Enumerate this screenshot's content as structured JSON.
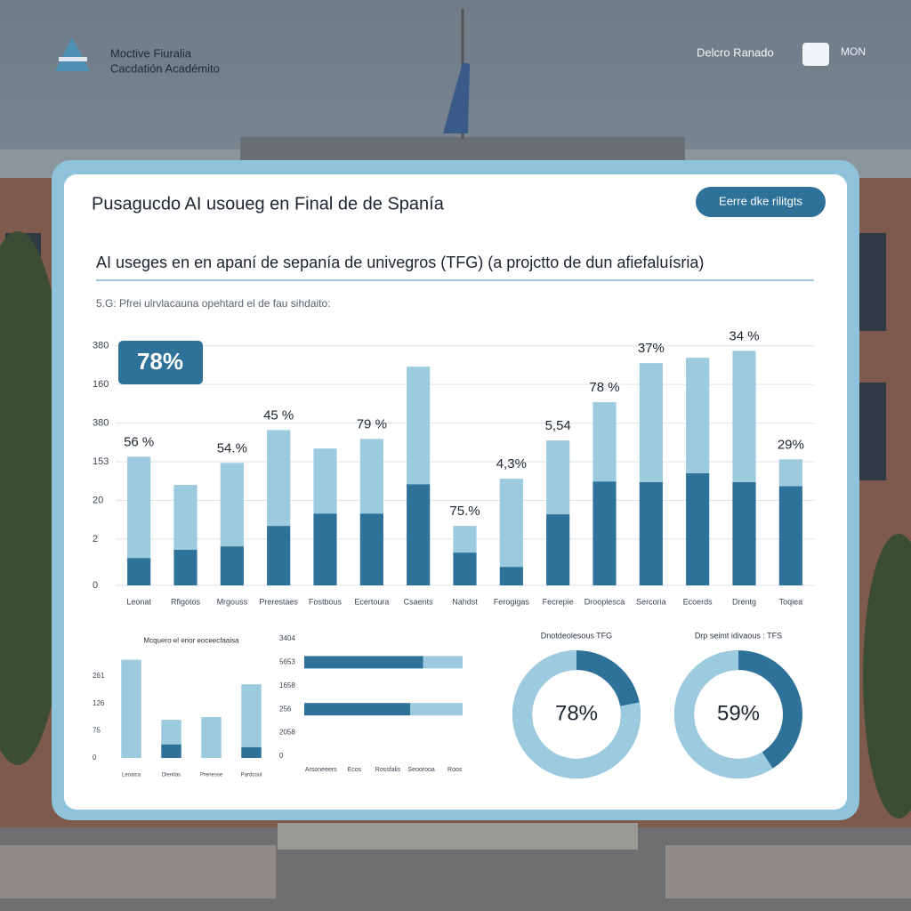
{
  "header": {
    "brand_line1": "Moctive Fiuralia",
    "brand_line2": "Cacdatión Académito",
    "user": "Delcro Ranado",
    "logo_text": "MON"
  },
  "card": {
    "title": "Pusagucdo AI usoueg en Final de de Spanía",
    "button": "Eerre dke rilitgts",
    "subtitle": "AI useges en en apaní de sepanía de univegros (TFG) (a projctto de dun afiefaluísria)",
    "note": "5.G: Pfrei ulrvlacauna opehtard el de fau sihdaito:",
    "badge": "78%"
  },
  "chart_data": [
    {
      "type": "bar",
      "categories": [
        "Leonat",
        "Rfigotos",
        "Mrgouss",
        "Prerestaes",
        "Fostbous",
        "Ecertoura",
        "Csaents",
        "Nahdst",
        "Ferogigas",
        "Fecrepie",
        "Drooplesca",
        "Sercoria",
        "Ecoerds",
        "Drentg",
        "Toqiea"
      ],
      "series": [
        {
          "color": "#2e7199",
          "values": [
            7.1,
            9.2,
            10.1,
            15.4,
            18.6,
            18.6,
            26.2,
            8.5,
            4.8,
            18.4,
            26.9,
            26.7,
            29.0,
            26.7,
            25.7
          ]
        },
        {
          "color": "#9ccbe0",
          "values": [
            26.2,
            16.8,
            21.6,
            24.8,
            16.8,
            19.3,
            30.4,
            6.9,
            22.8,
            19.1,
            20.5,
            30.8,
            29.9,
            34.0,
            6.9
          ]
        }
      ],
      "annotations": [
        "56 %",
        null,
        "54.%",
        "45 %",
        null,
        "79 %",
        null,
        "75.%",
        "4,3%",
        "5,54",
        "78 %",
        "37%",
        null,
        "34 %",
        "29%"
      ],
      "ylim": [
        0,
        64
      ],
      "yticks": [
        0,
        {
          "value": 12,
          "label": "2"
        },
        {
          "value": 22,
          "label": "20"
        },
        {
          "value": 32,
          "label": "153"
        },
        {
          "value": 42,
          "label": "380"
        },
        {
          "value": 52,
          "label": "160"
        },
        {
          "value": 62,
          "label": "380"
        }
      ],
      "grid": true
    },
    {
      "type": "bar",
      "title": "Mcquero el enor eoceecfaaisa",
      "categories": [
        "Leoaica",
        "Dlenilas",
        "Prenesse",
        "Pardcoul"
      ],
      "series": [
        {
          "color": "#2e7199",
          "values": [
            0,
            0.5,
            0,
            0.4
          ]
        },
        {
          "color": "#9ccbe0",
          "values": [
            3.6,
            0.9,
            1.5,
            2.3
          ]
        }
      ],
      "ylim": [
        0,
        3.7
      ],
      "yticks": [
        0,
        {
          "value": 1,
          "label": "75"
        },
        {
          "value": 2,
          "label": "126"
        },
        {
          "value": 3,
          "label": "261"
        }
      ],
      "grid": false
    },
    {
      "type": "hbar",
      "row_labels": [
        "3404",
        "5653",
        "1658",
        "256",
        "2058",
        "0"
      ],
      "x_labels": [
        "Arsoneeers",
        "Ecos",
        "Rossfalis",
        "Seoorooa",
        "Roos"
      ],
      "series": [
        {
          "color": "#2e7199",
          "values": [
            75,
            67
          ]
        },
        {
          "color": "#9ccbe0",
          "values": [
            25,
            33
          ]
        }
      ],
      "xlim": [
        0,
        100
      ]
    },
    {
      "type": "donut",
      "title": "Dnotdeolesous TFG",
      "value": 78,
      "value_label": "78%",
      "color": "#9ccbe0",
      "track_color": "#2e7199"
    },
    {
      "type": "donut",
      "title": "Drp seimt idivaous : TFS",
      "value": 59,
      "value_label": "59%",
      "color": "#9ccbe0",
      "track_color": "#2e7199"
    }
  ]
}
